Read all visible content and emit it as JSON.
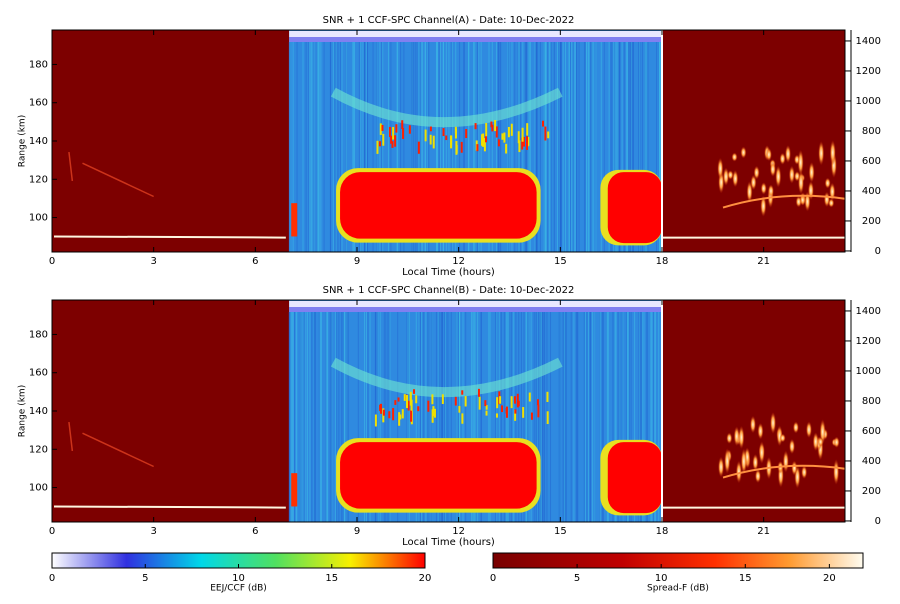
{
  "chart_data": [
    {
      "type": "heatmap",
      "title": "SNR + 1 CCF-SPC Channel(A) - Date: 10-Dec-2022",
      "xlabel": "Local Time (hours)",
      "ylabel": "Range (km)",
      "xlim": [
        0,
        23.4
      ],
      "xticks": [
        0,
        3,
        6,
        9,
        12,
        15,
        18,
        21
      ],
      "ylim": [
        82,
        198
      ],
      "yticks": [
        100,
        120,
        140,
        160,
        180
      ],
      "y2lim": [
        -7,
        1473
      ],
      "y2ticks": [
        0,
        200,
        400,
        600,
        800,
        1000,
        1200,
        1400
      ]
    },
    {
      "type": "heatmap",
      "title": "SNR + 1 CCF-SPC Channel(B) - Date: 10-Dec-2022",
      "xlabel": "Local Time (hours)",
      "ylabel": "Range (km)",
      "xlim": [
        0,
        23.4
      ],
      "xticks": [
        0,
        3,
        6,
        9,
        12,
        15,
        18,
        21
      ],
      "ylim": [
        82,
        198
      ],
      "yticks": [
        100,
        120,
        140,
        160,
        180
      ],
      "y2lim": [
        -7,
        1473
      ],
      "y2ticks": [
        0,
        200,
        400,
        600,
        800,
        1000,
        1200,
        1400
      ]
    },
    {
      "type": "colorbar",
      "label": "EEJ/CCF (dB)",
      "xlim": [
        0,
        20
      ],
      "xticks": [
        0,
        5,
        10,
        15,
        20
      ]
    },
    {
      "type": "colorbar",
      "label": "Spread-F (dB)",
      "xlim": [
        0,
        22
      ],
      "xticks": [
        0,
        5,
        10,
        15,
        20
      ]
    }
  ]
}
